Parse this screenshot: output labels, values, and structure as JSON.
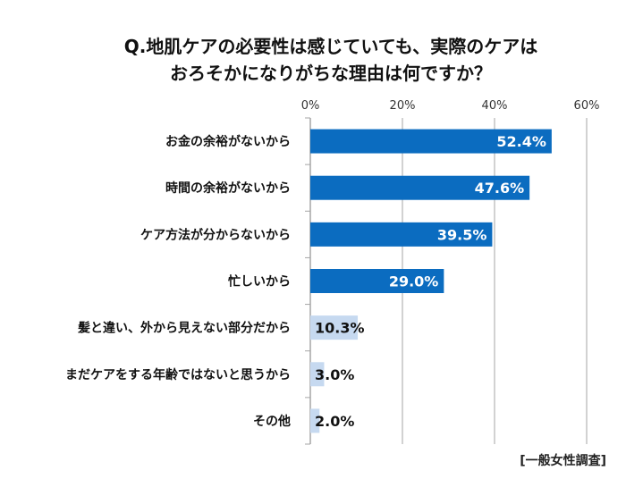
{
  "chart_data": {
    "type": "bar",
    "orientation": "horizontal",
    "title_lines": [
      "Q.地肌ケアの必要性は感じていても、実際のケアは",
      "おろそかになりがちな理由は何ですか？"
    ],
    "categories": [
      "お金の余裕がないから",
      "時間の余裕がないから",
      "ケア方法が分からないから",
      "忙しいから",
      "髪と違い、外から見えない部分だから",
      "まだケアをする年齢ではないと思うから",
      "その他"
    ],
    "values": [
      52.4,
      47.6,
      39.5,
      29.0,
      10.3,
      3.0,
      2.0
    ],
    "data_labels": [
      "52.4%",
      "47.6%",
      "39.5%",
      "29.0%",
      "10.3%",
      "3.0%",
      "2.0%"
    ],
    "xlim": [
      0,
      60
    ],
    "ticks": [
      "0%",
      "20%",
      "40%",
      "60%"
    ],
    "tick_values": [
      0,
      20,
      40,
      60
    ],
    "tick_position": "top",
    "grid": true,
    "colors": {
      "highlight": "#0b6cc0",
      "normal": "#c6d9f0"
    },
    "highlight_count": 4,
    "source_note": "[一般女性調査]"
  }
}
